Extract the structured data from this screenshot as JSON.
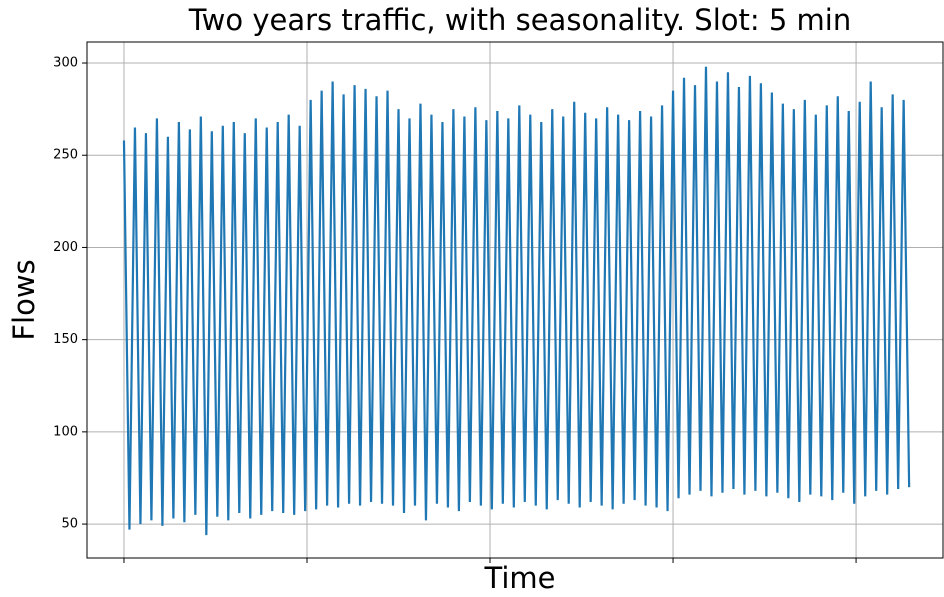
{
  "chart_data": {
    "type": "line",
    "title": "Two years traffic, with seasonality. Slot: 5 min",
    "x_label": "Time",
    "y_label": "Flows",
    "x": [
      0,
      3,
      6,
      9,
      12,
      15,
      18,
      21,
      24,
      27,
      30,
      33,
      36,
      39,
      42,
      45,
      48,
      51,
      54,
      57,
      60,
      63,
      66,
      69,
      72,
      75,
      78,
      81,
      84,
      87,
      90,
      93,
      96,
      99,
      102,
      105,
      108,
      111,
      114,
      117,
      120,
      123,
      126,
      129,
      132,
      135,
      138,
      141,
      144,
      147,
      150,
      153,
      156,
      159,
      162,
      165,
      168,
      171,
      174,
      177,
      180,
      183,
      186,
      189,
      192,
      195,
      198,
      201,
      204,
      207,
      210,
      213,
      216,
      219,
      222,
      225,
      228,
      231,
      234,
      237,
      240,
      243,
      246,
      249,
      252,
      255,
      258,
      261,
      264,
      267,
      270,
      273,
      276,
      279,
      282,
      285,
      288,
      291,
      294,
      297,
      300,
      303,
      306,
      309,
      312,
      315,
      318,
      321,
      324,
      327,
      330,
      333,
      336,
      339,
      342,
      345,
      348,
      351,
      354,
      357,
      360,
      363,
      366,
      369,
      372,
      375,
      378,
      381,
      384,
      387,
      390,
      393,
      396,
      399,
      402,
      405,
      408,
      411,
      414,
      417,
      420,
      423,
      426,
      429
    ],
    "values": [
      258,
      47,
      265,
      50,
      262,
      52,
      270,
      49,
      260,
      53,
      268,
      51,
      264,
      55,
      271,
      44,
      263,
      54,
      266,
      52,
      268,
      56,
      262,
      53,
      270,
      55,
      265,
      57,
      268,
      56,
      272,
      55,
      266,
      57,
      280,
      58,
      285,
      60,
      290,
      59,
      283,
      61,
      288,
      60,
      286,
      62,
      282,
      61,
      285,
      60,
      275,
      56,
      270,
      60,
      278,
      52,
      272,
      61,
      268,
      59,
      275,
      57,
      271,
      62,
      276,
      60,
      269,
      58,
      274,
      61,
      270,
      59,
      277,
      62,
      272,
      60,
      268,
      58,
      275,
      63,
      271,
      61,
      279,
      59,
      273,
      62,
      270,
      60,
      276,
      58,
      272,
      61,
      269,
      63,
      274,
      60,
      271,
      59,
      277,
      57,
      285,
      64,
      292,
      66,
      288,
      68,
      298,
      65,
      290,
      67,
      295,
      69,
      287,
      66,
      293,
      68,
      289,
      65,
      284,
      67,
      278,
      64,
      275,
      62,
      280,
      66,
      272,
      65,
      277,
      63,
      282,
      67,
      274,
      61,
      279,
      65,
      290,
      68,
      276,
      66,
      283,
      69,
      280,
      70
    ],
    "color": "#1f77b4",
    "xlim": [
      -20.2,
      447.5
    ],
    "xticks": [
      0,
      100,
      200,
      300,
      400
    ],
    "ylim": [
      31.6,
      311.4
    ],
    "yticks": [
      50,
      100,
      150,
      200,
      250,
      300
    ],
    "grid": true
  }
}
